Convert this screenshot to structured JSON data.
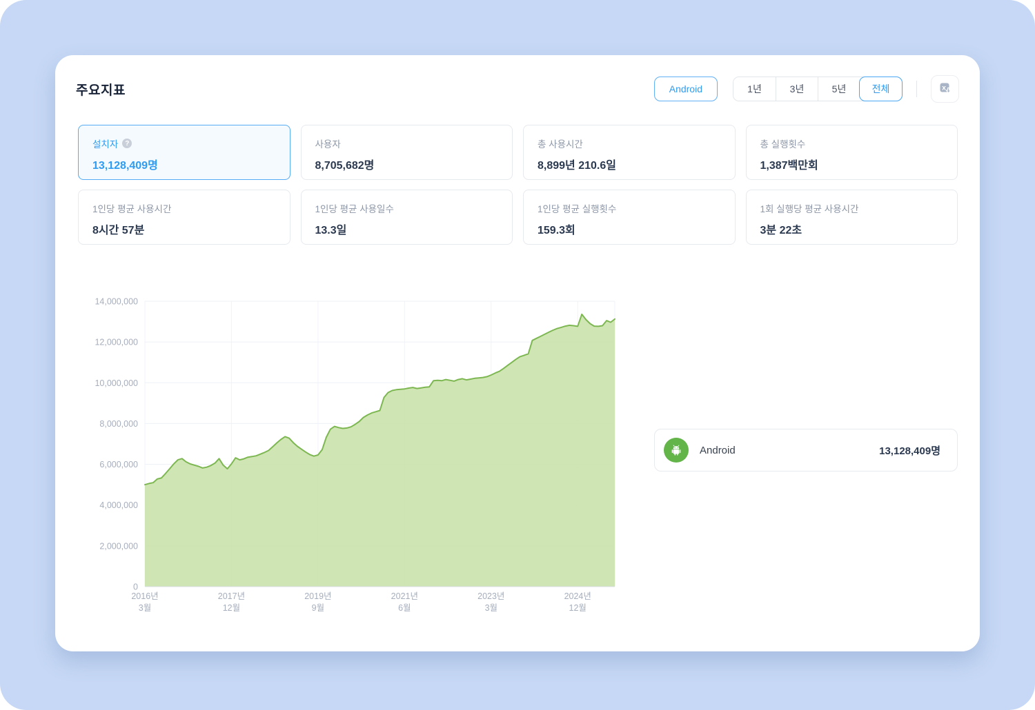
{
  "page": {
    "title": "주요지표"
  },
  "controls": {
    "platform_button": "Android",
    "range_buttons": [
      {
        "label": "1년",
        "active": false
      },
      {
        "label": "3년",
        "active": false
      },
      {
        "label": "5년",
        "active": false
      },
      {
        "label": "전체",
        "active": true
      }
    ],
    "export_icon": "excel-download-icon"
  },
  "metrics": {
    "cards": [
      {
        "label": "설치자",
        "value": "13,128,409명",
        "selected": true,
        "help_icon": "?"
      },
      {
        "label": "사용자",
        "value": "8,705,682명",
        "selected": false
      },
      {
        "label": "총 사용시간",
        "value": "8,899년 210.6일",
        "selected": false
      },
      {
        "label": "총 실행횟수",
        "value": "1,387백만회",
        "selected": false
      },
      {
        "label": "1인당 평균 사용시간",
        "value": "8시간 57분",
        "selected": false
      },
      {
        "label": "1인당 평균 사용일수",
        "value": "13.3일",
        "selected": false
      },
      {
        "label": "1인당 평균 실행횟수",
        "value": "159.3회",
        "selected": false
      },
      {
        "label": "1회 실행당 평균 사용시간",
        "value": "3분 22초",
        "selected": false
      }
    ]
  },
  "legend": {
    "platform": "Android",
    "value": "13,128,409명",
    "icon": "android-icon"
  },
  "colors": {
    "accent_blue": "#2f9cf1",
    "chart_line": "#7db751",
    "chart_fill": "#cbe3ad",
    "legend_green": "#63b449",
    "page_background": "#c6d8f5",
    "grid_line": "#edf0f5",
    "axis_label": "#a6aebc"
  },
  "chart_data": {
    "type": "area",
    "metric": "설치자",
    "x_start": "2016-03",
    "x_interval_months": 1,
    "ylim": [
      0,
      14000000
    ],
    "grid": true,
    "legend_position": "right",
    "y_ticks": [
      0,
      2000000,
      4000000,
      6000000,
      8000000,
      10000000,
      12000000,
      14000000
    ],
    "x_ticks": [
      {
        "index": 0,
        "line1": "2016년",
        "line2": "3월"
      },
      {
        "index": 21,
        "line1": "2017년",
        "line2": "12월"
      },
      {
        "index": 42,
        "line1": "2019년",
        "line2": "9월"
      },
      {
        "index": 63,
        "line1": "2021년",
        "line2": "6월"
      },
      {
        "index": 84,
        "line1": "2023년",
        "line2": "3월"
      },
      {
        "index": 105,
        "line1": "2024년",
        "line2": "12월"
      }
    ],
    "series": [
      {
        "name": "Android 설치자",
        "values": [
          5000000,
          5060000,
          5100000,
          5280000,
          5330000,
          5550000,
          5780000,
          6020000,
          6220000,
          6280000,
          6120000,
          6020000,
          5960000,
          5900000,
          5820000,
          5860000,
          5940000,
          6060000,
          6280000,
          5960000,
          5780000,
          6020000,
          6320000,
          6220000,
          6270000,
          6350000,
          6380000,
          6420000,
          6500000,
          6580000,
          6680000,
          6860000,
          7050000,
          7220000,
          7360000,
          7280000,
          7060000,
          6880000,
          6740000,
          6600000,
          6480000,
          6400000,
          6460000,
          6720000,
          7320000,
          7720000,
          7860000,
          7800000,
          7760000,
          7780000,
          7840000,
          7960000,
          8100000,
          8300000,
          8420000,
          8520000,
          8580000,
          8640000,
          9280000,
          9520000,
          9620000,
          9660000,
          9680000,
          9700000,
          9740000,
          9770000,
          9720000,
          9750000,
          9780000,
          9800000,
          10100000,
          10120000,
          10100000,
          10160000,
          10120000,
          10080000,
          10160000,
          10200000,
          10140000,
          10180000,
          10220000,
          10240000,
          10260000,
          10300000,
          10380000,
          10480000,
          10560000,
          10700000,
          10850000,
          11000000,
          11150000,
          11280000,
          11350000,
          11420000,
          12080000,
          12180000,
          12280000,
          12380000,
          12480000,
          12580000,
          12660000,
          12720000,
          12780000,
          12820000,
          12800000,
          12770000,
          13360000,
          13100000,
          12900000,
          12780000,
          12770000,
          12800000,
          13050000,
          12970000,
          13128409
        ]
      }
    ]
  }
}
